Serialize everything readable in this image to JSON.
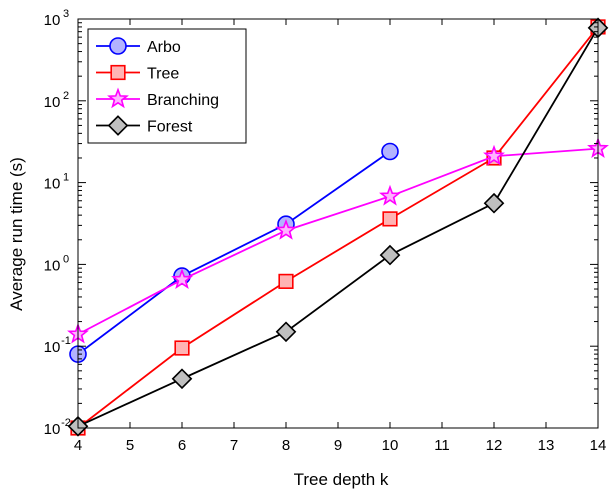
{
  "chart_data": {
    "type": "line",
    "title": "",
    "xlabel": "Tree depth k",
    "ylabel": "Average run time (s)",
    "xlim": [
      4,
      14
    ],
    "ylim": [
      0.01,
      1000
    ],
    "yscale": "log",
    "grid": false,
    "legend_position": "top-left",
    "x_ticks": [
      "4",
      "5",
      "6",
      "7",
      "8",
      "9",
      "10",
      "11",
      "12",
      "13",
      "14"
    ],
    "y_ticks": [
      {
        "base": "10",
        "exp": "-2"
      },
      {
        "base": "10",
        "exp": "-1"
      },
      {
        "base": "10",
        "exp": "0"
      },
      {
        "base": "10",
        "exp": "1"
      },
      {
        "base": "10",
        "exp": "2"
      },
      {
        "base": "10",
        "exp": "3"
      }
    ],
    "series": [
      {
        "name": "Arbo",
        "color": "#0000ff",
        "fill": "#b3b3ff",
        "marker": "circle",
        "x": [
          4,
          6,
          8,
          10
        ],
        "y": [
          0.08,
          0.72,
          3.1,
          24
        ]
      },
      {
        "name": "Tree",
        "color": "#ff0000",
        "fill": "#ffb3b3",
        "marker": "square",
        "x": [
          4,
          6,
          8,
          10,
          12,
          14
        ],
        "y": [
          0.01,
          0.095,
          0.62,
          3.6,
          20,
          800
        ]
      },
      {
        "name": "Branching",
        "color": "#ff00ff",
        "fill": "#ffb3ff",
        "marker": "star",
        "x": [
          4,
          6,
          8,
          10,
          12,
          14
        ],
        "y": [
          0.14,
          0.65,
          2.6,
          6.8,
          21,
          26
        ]
      },
      {
        "name": "Forest",
        "color": "#000000",
        "fill": "#bfbfbf",
        "marker": "diamond",
        "x": [
          4,
          6,
          8,
          10,
          12,
          14
        ],
        "y": [
          0.0105,
          0.04,
          0.15,
          1.3,
          5.6,
          780
        ]
      }
    ]
  }
}
